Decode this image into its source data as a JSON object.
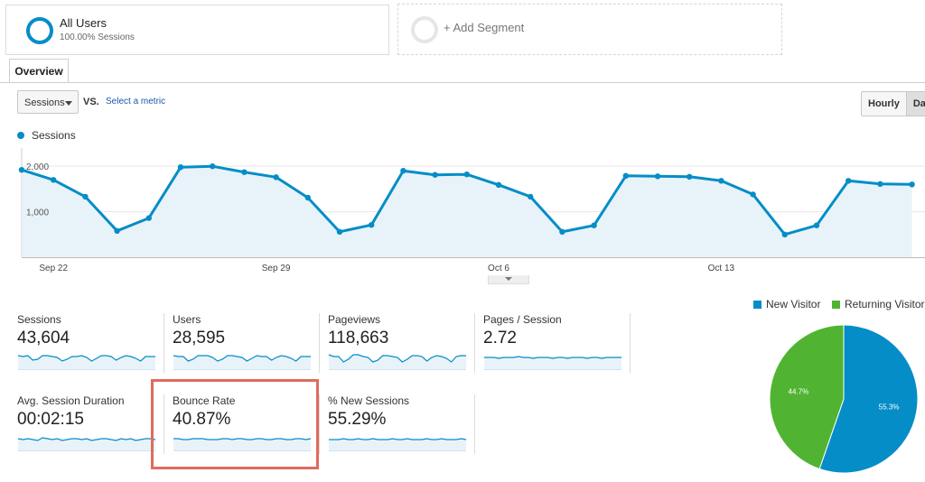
{
  "segments": {
    "all_users": {
      "title": "All Users",
      "subtitle": "100.00% Sessions"
    },
    "add_segment_label": "+ Add Segment"
  },
  "tabs": {
    "overview_label": "Overview"
  },
  "controls": {
    "metric_select_value": "Sessions",
    "vs_label": "VS.",
    "select_metric_link": "Select a metric",
    "granularity": [
      "Hourly",
      "Day"
    ],
    "granularity_active": "Day"
  },
  "chart_data": {
    "type": "area",
    "series": [
      {
        "name": "Sessions",
        "values": [
          1920,
          1700,
          1330,
          580,
          860,
          1980,
          2000,
          1870,
          1760,
          1310,
          560,
          710,
          1900,
          1810,
          1820,
          1590,
          1330,
          560,
          700,
          1790,
          1780,
          1770,
          1680,
          1380,
          500,
          700,
          1680,
          1610,
          1600
        ]
      }
    ],
    "x_tick_labels": [
      "Sep 22",
      "Sep 29",
      "Oct 6",
      "Oct 13"
    ],
    "y_tick_labels": [
      "2,000",
      "1,000"
    ],
    "ylim": [
      0,
      2400
    ],
    "legend": "top-left",
    "color": "#058dc7",
    "fill": "#e8f3f9"
  },
  "metrics": [
    {
      "label": "Sessions",
      "value": "43,604"
    },
    {
      "label": "Users",
      "value": "28,595"
    },
    {
      "label": "Pageviews",
      "value": "118,663"
    },
    {
      "label": "Pages / Session",
      "value": "2.72"
    },
    {
      "label": "Avg. Session Duration",
      "value": "00:02:15"
    },
    {
      "label": "Bounce Rate",
      "value": "40.87%"
    },
    {
      "label": "% New Sessions",
      "value": "55.29%"
    }
  ],
  "pie": {
    "legend": [
      {
        "name": "New Visitor",
        "color": "#058dc7"
      },
      {
        "name": "Returning Visitor",
        "color": "#50b432"
      }
    ],
    "slices": [
      {
        "name": "New Visitor",
        "percent": 55.3,
        "label": "55.3%",
        "color": "#058dc7"
      },
      {
        "name": "Returning Visitor",
        "percent": 44.7,
        "label": "44.7%",
        "color": "#50b432"
      }
    ]
  }
}
